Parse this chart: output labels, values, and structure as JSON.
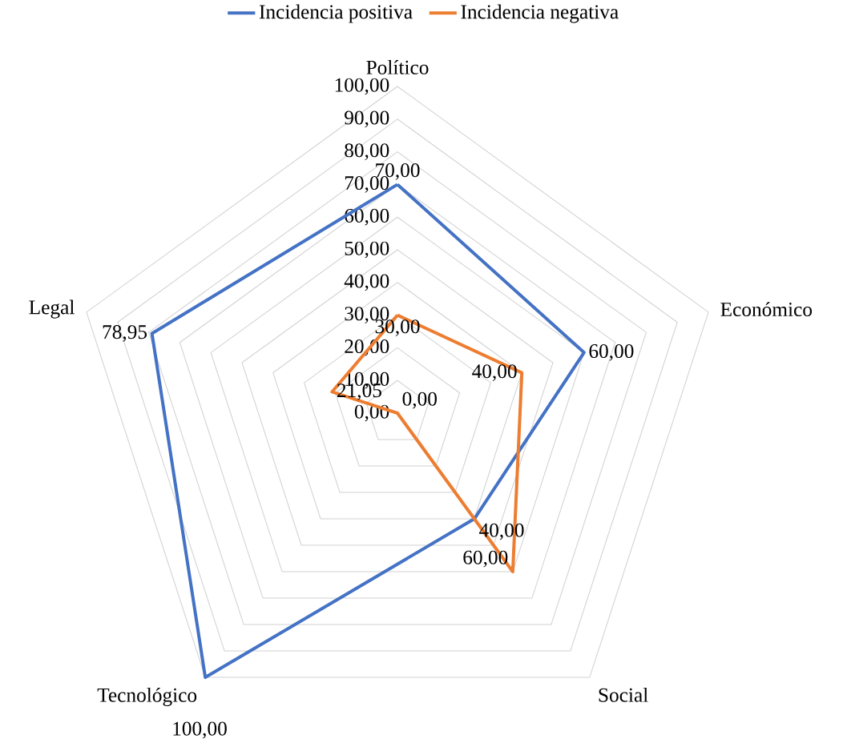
{
  "chart_data": {
    "type": "radar",
    "categories": [
      "Político",
      "Económico",
      "Social",
      "Tecnológico",
      "Legal"
    ],
    "series": [
      {
        "name": "Incidencia positiva",
        "color": "#4472c4",
        "values": [
          70,
          60,
          40,
          100,
          78.95
        ],
        "value_labels": [
          "70,00",
          "60,00",
          "40,00",
          "100,00",
          "78,95"
        ]
      },
      {
        "name": "Incidencia negativa",
        "color": "#ed7d31",
        "values": [
          30,
          40,
          60,
          0,
          21.05
        ],
        "value_labels": [
          "30,00",
          "40,00",
          "60,00",
          "0,00",
          "21,05"
        ]
      }
    ],
    "ylim": [
      0,
      100
    ],
    "yticks": [
      {
        "value": 0,
        "label": "0,00"
      },
      {
        "value": 10,
        "label": "10,00"
      },
      {
        "value": 20,
        "label": "20,00"
      },
      {
        "value": 30,
        "label": "30,00"
      },
      {
        "value": 40,
        "label": "40,00"
      },
      {
        "value": 50,
        "label": "50,00"
      },
      {
        "value": 60,
        "label": "60,00"
      },
      {
        "value": 70,
        "label": "70,00"
      },
      {
        "value": 80,
        "label": "80,00"
      },
      {
        "value": 90,
        "label": "90,00"
      },
      {
        "value": 100,
        "label": "100,00"
      }
    ],
    "grid": true,
    "legend": "top",
    "line_style": "solid",
    "marker": "none"
  }
}
